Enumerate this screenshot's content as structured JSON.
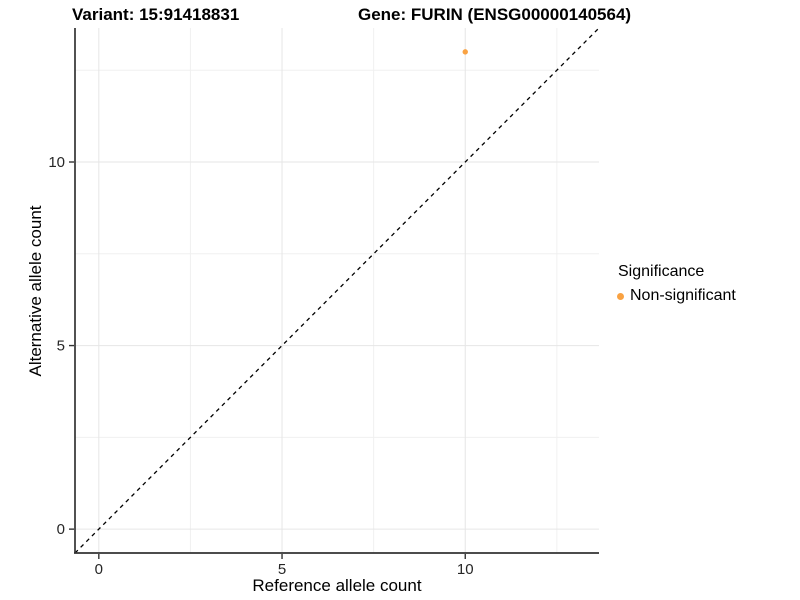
{
  "header": {
    "variant_title": "Variant: 15:91418831",
    "gene_title": "Gene: FURIN (ENSG00000140564)"
  },
  "axes": {
    "x_label": "Reference allele count",
    "y_label": "Alternative allele count"
  },
  "legend": {
    "title": "Significance",
    "items": [
      {
        "label": "Non-significant",
        "color": "#F9A242",
        "marker": "circle-icon"
      }
    ]
  },
  "colors": {
    "background": "#ffffff",
    "axis_line": "#333333",
    "tick_label": "#262626",
    "grid_major": "#E6E6E6",
    "grid_minor": "#F0F0F0",
    "reference_line": "#000000",
    "point": "#F9A242"
  },
  "chart_data": {
    "type": "scatter",
    "title": "Variant: 15:91418831 | Gene: FURIN (ENSG00000140564)",
    "xlabel": "Reference allele count",
    "ylabel": "Alternative allele count",
    "xlim": [
      -0.65,
      13.65
    ],
    "ylim": [
      -0.65,
      13.65
    ],
    "x_ticks": [
      0,
      5,
      10
    ],
    "y_ticks": [
      0,
      5,
      10
    ],
    "x_minor_ticks": [
      2.5,
      7.5,
      12.5
    ],
    "y_minor_ticks": [
      2.5,
      7.5,
      12.5
    ],
    "grid": true,
    "legend_position": "right",
    "series": [
      {
        "name": "Non-significant",
        "color": "#F9A242",
        "points": [
          {
            "x": 10,
            "y": 13
          }
        ]
      }
    ],
    "reference_line": {
      "type": "abline",
      "slope": 1,
      "intercept": 0,
      "style": "dashed",
      "color": "#000000"
    }
  }
}
